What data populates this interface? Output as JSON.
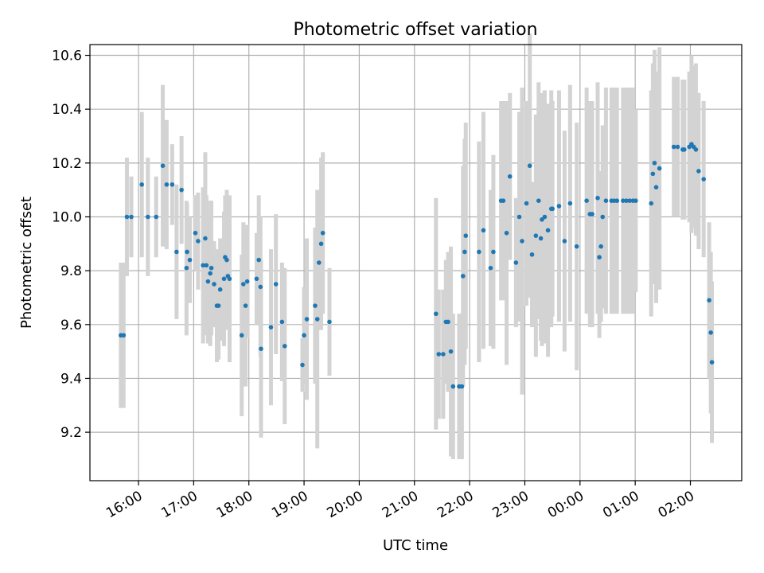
{
  "chart_data": {
    "type": "scatter",
    "title": "Photometric offset variation",
    "xlabel": "UTC time",
    "ylabel": "Photometric offset",
    "grid": true,
    "ylim": [
      9.02,
      10.64
    ],
    "xlim_hours": [
      15.12,
      26.93
    ],
    "x_unit": "hours UTC since 00:00 of first day",
    "x_ticks": [
      {
        "value": 16,
        "label": "16:00"
      },
      {
        "value": 17,
        "label": "17:00"
      },
      {
        "value": 18,
        "label": "18:00"
      },
      {
        "value": 19,
        "label": "19:00"
      },
      {
        "value": 20,
        "label": "20:00"
      },
      {
        "value": 21,
        "label": "21:00"
      },
      {
        "value": 22,
        "label": "22:00"
      },
      {
        "value": 23,
        "label": "23:00"
      },
      {
        "value": 24,
        "label": "00:00"
      },
      {
        "value": 25,
        "label": "01:00"
      },
      {
        "value": 26,
        "label": "02:00"
      }
    ],
    "y_ticks": [
      {
        "value": 9.2,
        "label": "9.2"
      },
      {
        "value": 9.4,
        "label": "9.4"
      },
      {
        "value": 9.6,
        "label": "9.6"
      },
      {
        "value": 9.8,
        "label": "9.8"
      },
      {
        "value": 10.0,
        "label": "10.0"
      },
      {
        "value": 10.2,
        "label": "10.2"
      },
      {
        "value": 10.4,
        "label": "10.4"
      },
      {
        "value": 10.6,
        "label": "10.6"
      }
    ],
    "point_color": "#1f77b4",
    "errorbar_color": "#d3d3d3",
    "series": [
      {
        "name": "offset",
        "x": [
          15.68,
          15.73,
          15.79,
          15.87,
          16.06,
          16.17,
          16.32,
          16.44,
          16.51,
          16.61,
          16.69,
          16.78,
          16.87,
          16.88,
          16.93,
          17.03,
          17.08,
          17.17,
          17.21,
          17.23,
          17.26,
          17.3,
          17.32,
          17.37,
          17.42,
          17.45,
          17.48,
          17.55,
          17.57,
          17.6,
          17.62,
          17.65,
          17.87,
          17.9,
          17.94,
          17.97,
          18.14,
          18.18,
          18.21,
          18.22,
          18.4,
          18.49,
          18.6,
          18.65,
          18.97,
          19.0,
          19.05,
          19.2,
          19.24,
          19.27,
          19.31,
          19.34,
          19.46,
          21.39,
          21.44,
          21.52,
          21.57,
          21.61,
          21.66,
          21.7,
          21.81,
          21.86,
          21.88,
          21.91,
          21.93,
          22.17,
          22.25,
          22.38,
          22.43,
          22.57,
          22.61,
          22.67,
          22.73,
          22.84,
          22.9,
          22.95,
          23.03,
          23.09,
          23.13,
          23.2,
          23.25,
          23.29,
          23.31,
          23.36,
          23.42,
          23.48,
          23.5,
          23.62,
          23.72,
          23.82,
          23.94,
          24.12,
          24.18,
          24.22,
          24.32,
          24.35,
          24.38,
          24.41,
          24.47,
          24.57,
          24.62,
          24.67,
          24.78,
          24.84,
          24.9,
          24.96,
          25.01,
          25.29,
          25.32,
          25.35,
          25.38,
          25.44,
          25.7,
          25.77,
          25.86,
          25.89,
          25.98,
          26.02,
          26.06,
          26.1,
          26.15,
          26.24,
          26.34,
          26.37,
          26.39
        ],
        "y": [
          9.56,
          9.56,
          10.0,
          10.0,
          10.12,
          10.0,
          10.0,
          10.19,
          10.12,
          10.12,
          9.87,
          10.1,
          9.81,
          9.87,
          9.84,
          9.94,
          9.91,
          9.82,
          9.92,
          9.82,
          9.76,
          9.79,
          9.81,
          9.75,
          9.67,
          9.67,
          9.73,
          9.77,
          9.85,
          9.84,
          9.78,
          9.77,
          9.56,
          9.75,
          9.67,
          9.76,
          9.77,
          9.84,
          9.74,
          9.51,
          9.59,
          9.75,
          9.61,
          9.52,
          9.45,
          9.56,
          9.62,
          9.67,
          9.62,
          9.83,
          9.9,
          9.94,
          9.61,
          9.64,
          9.49,
          9.49,
          9.61,
          9.61,
          9.5,
          9.37,
          9.37,
          9.37,
          9.78,
          9.87,
          9.93,
          9.87,
          9.95,
          9.81,
          9.87,
          10.06,
          10.06,
          9.94,
          10.15,
          9.83,
          10.0,
          9.91,
          10.05,
          10.19,
          9.86,
          9.93,
          10.06,
          9.92,
          9.99,
          10.0,
          9.95,
          10.03,
          10.03,
          10.04,
          9.91,
          10.05,
          9.89,
          10.06,
          10.01,
          10.01,
          10.07,
          9.85,
          9.89,
          10.0,
          10.06,
          10.06,
          10.06,
          10.06,
          10.06,
          10.06,
          10.06,
          10.06,
          10.06,
          10.05,
          10.16,
          10.2,
          10.11,
          10.18,
          10.26,
          10.26,
          10.25,
          10.25,
          10.26,
          10.27,
          10.26,
          10.25,
          10.17,
          10.14,
          9.69,
          9.57,
          9.46
        ],
        "err": [
          0.27,
          0.27,
          0.22,
          0.15,
          0.27,
          0.22,
          0.15,
          0.3,
          0.24,
          0.15,
          0.25,
          0.2,
          0.25,
          0.18,
          0.16,
          0.14,
          0.18,
          0.29,
          0.32,
          0.26,
          0.23,
          0.27,
          0.25,
          0.16,
          0.21,
          0.2,
          0.19,
          0.25,
          0.23,
          0.26,
          0.19,
          0.31,
          0.3,
          0.23,
          0.3,
          0.21,
          0.17,
          0.24,
          0.26,
          0.33,
          0.29,
          0.26,
          0.22,
          0.29,
          0.1,
          0.18,
          0.3,
          0.29,
          0.48,
          0.25,
          0.32,
          0.3,
          0.2,
          0.43,
          0.24,
          0.24,
          0.23,
          0.26,
          0.39,
          0.27,
          0.27,
          0.27,
          0.41,
          0.42,
          0.42,
          0.41,
          0.44,
          0.29,
          0.36,
          0.37,
          0.37,
          0.49,
          0.31,
          0.24,
          0.39,
          0.57,
          0.38,
          0.49,
          0.27,
          0.45,
          0.44,
          0.38,
          0.47,
          0.47,
          0.47,
          0.44,
          0.4,
          0.43,
          0.41,
          0.44,
          0.46,
          0.42,
          0.42,
          0.42,
          0.43,
          0.3,
          0.28,
          0.34,
          0.42,
          0.42,
          0.42,
          0.42,
          0.42,
          0.42,
          0.42,
          0.42,
          0.34,
          0.42,
          0.41,
          0.42,
          0.43,
          0.45,
          0.26,
          0.26,
          0.26,
          0.26,
          0.28,
          0.33,
          0.3,
          0.32,
          0.29,
          0.29,
          0.29,
          0.3,
          0.3
        ]
      }
    ]
  }
}
